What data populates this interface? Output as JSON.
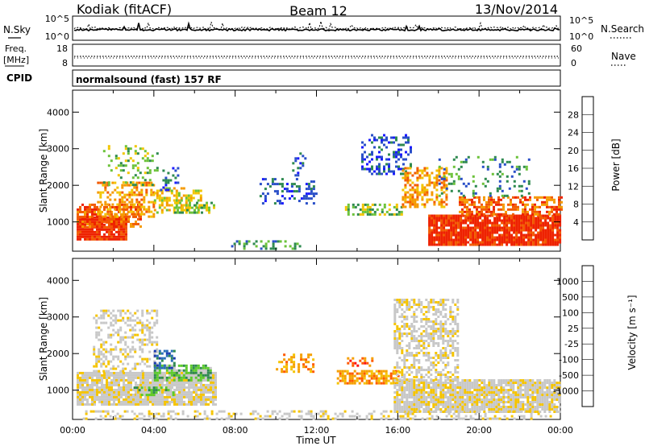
{
  "header": {
    "station": "Kodiak (fitACF)",
    "beam": "Beam 12",
    "date": "13/Nov/2014"
  },
  "strips": {
    "sky": {
      "left_label": "N.Sky",
      "right_label": "N.Search",
      "left_ticks": [
        "10^5",
        "10^0"
      ],
      "right_ticks": [
        "10^5",
        "10^0"
      ]
    },
    "freq": {
      "left_label_1": "Freq.",
      "left_label_2": "[MHz]",
      "right_label": "Nave",
      "left_ticks": [
        "18",
        "8"
      ],
      "right_ticks": [
        "60",
        "0"
      ]
    },
    "cpid": {
      "left_label": "CPID",
      "text": "normalsound (fast) 157 RF"
    }
  },
  "colors": {
    "power": [
      "#1a1aff",
      "#2a4fc8",
      "#2f8a50",
      "#6cc23a",
      "#f2c500",
      "#f59a00",
      "#f25a00",
      "#ee2200"
    ],
    "velocity": [
      "#ff1111",
      "#ff5a00",
      "#f5a000",
      "#f5c400",
      "#c8c8c8",
      "#c8c8c8",
      "#5ccb2b",
      "#2f8a50",
      "#2a6fb8",
      "#1a3ab0"
    ]
  },
  "chart_data": [
    {
      "type": "heatmap",
      "name": "power",
      "ylabel": "Slant Range [km]",
      "xlim": [
        0,
        24
      ],
      "ylim": [
        200,
        4600
      ],
      "yticks": [
        "1000",
        "2000",
        "3000",
        "4000"
      ],
      "colorbar": {
        "label": "Power [dB]",
        "ticks": [
          "28",
          "24",
          "20",
          "16",
          "12",
          "8",
          "4"
        ]
      },
      "regions": [
        {
          "t0": 0.2,
          "t1": 2.6,
          "r0": 500,
          "r1": 1150,
          "level": 7,
          "density": 0.9
        },
        {
          "t0": 0.2,
          "t1": 3.4,
          "r0": 850,
          "r1": 1500,
          "level": 6,
          "density": 0.6
        },
        {
          "t0": 1.2,
          "t1": 4.0,
          "r0": 1150,
          "r1": 2100,
          "level": 5,
          "density": 0.45
        },
        {
          "t0": 1.5,
          "t1": 4.2,
          "r0": 2000,
          "r1": 3100,
          "level": 3,
          "density": 0.22
        },
        {
          "t0": 4.0,
          "t1": 6.3,
          "r0": 1250,
          "r1": 1950,
          "level": 4,
          "density": 0.45
        },
        {
          "t0": 5.0,
          "t1": 7.0,
          "r0": 1250,
          "r1": 1550,
          "level": 3,
          "density": 0.5
        },
        {
          "t0": 4.3,
          "t1": 5.2,
          "r0": 1900,
          "r1": 2500,
          "level": 1,
          "density": 0.3
        },
        {
          "t0": 7.8,
          "t1": 11.2,
          "r0": 300,
          "r1": 500,
          "level": 2,
          "density": 0.35
        },
        {
          "t0": 9.2,
          "t1": 12.0,
          "r0": 1500,
          "r1": 2200,
          "level": 1,
          "density": 0.3
        },
        {
          "t0": 10.8,
          "t1": 11.6,
          "r0": 2300,
          "r1": 2900,
          "level": 1,
          "density": 0.3
        },
        {
          "t0": 13.4,
          "t1": 16.2,
          "r0": 1200,
          "r1": 1500,
          "level": 3,
          "density": 0.5
        },
        {
          "t0": 14.2,
          "t1": 16.6,
          "r0": 2300,
          "r1": 3400,
          "level": 1,
          "density": 0.35
        },
        {
          "t0": 16.2,
          "t1": 18.4,
          "r0": 1400,
          "r1": 2500,
          "level": 5,
          "density": 0.5
        },
        {
          "t0": 17.5,
          "t1": 24.0,
          "r0": 400,
          "r1": 1200,
          "level": 7,
          "density": 0.92
        },
        {
          "t0": 19.0,
          "t1": 24.0,
          "r0": 1200,
          "r1": 1700,
          "level": 6,
          "density": 0.6
        },
        {
          "t0": 18.0,
          "t1": 22.5,
          "r0": 1700,
          "r1": 2800,
          "level": 2,
          "density": 0.15
        }
      ]
    },
    {
      "type": "heatmap",
      "name": "velocity",
      "ylabel": "Slant Range [km]",
      "xlabel": "Time UT",
      "xlim": [
        0,
        24
      ],
      "ylim": [
        200,
        4600
      ],
      "xticks": [
        "00:00",
        "04:00",
        "08:00",
        "12:00",
        "16:00",
        "20:00",
        "00:00"
      ],
      "yticks": [
        "1000",
        "2000",
        "3000",
        "4000"
      ],
      "colorbar": {
        "label": "Velocity [m s⁻¹]",
        "ticks": [
          "1000",
          "500",
          "100",
          "25",
          "-25",
          "-100",
          "-500",
          "-1000"
        ]
      },
      "regions": [
        {
          "t0": 0.2,
          "t1": 7.0,
          "r0": 600,
          "r1": 1500,
          "level": 4,
          "density": 0.9
        },
        {
          "t0": 1.0,
          "t1": 4.2,
          "r0": 1500,
          "r1": 3200,
          "level": 4,
          "density": 0.4
        },
        {
          "t0": 4.0,
          "t1": 6.8,
          "r0": 1250,
          "r1": 1700,
          "level": 6,
          "density": 0.8
        },
        {
          "t0": 3.0,
          "t1": 5.0,
          "r0": 900,
          "r1": 1100,
          "level": 6,
          "density": 0.5
        },
        {
          "t0": 4.0,
          "t1": 5.0,
          "r0": 1600,
          "r1": 2100,
          "level": 8,
          "density": 0.5
        },
        {
          "t0": 10.0,
          "t1": 11.8,
          "r0": 1500,
          "r1": 2000,
          "level": 2,
          "density": 0.35
        },
        {
          "t0": 13.0,
          "t1": 16.0,
          "r0": 1200,
          "r1": 1550,
          "level": 2,
          "density": 0.7
        },
        {
          "t0": 13.5,
          "t1": 14.8,
          "r0": 1700,
          "r1": 1900,
          "level": 1,
          "density": 0.4
        },
        {
          "t0": 15.8,
          "t1": 24.0,
          "r0": 400,
          "r1": 1300,
          "level": 4,
          "density": 0.88
        },
        {
          "t0": 15.8,
          "t1": 19.0,
          "r0": 1300,
          "r1": 3500,
          "level": 4,
          "density": 0.55
        },
        {
          "t0": 0.5,
          "t1": 23.5,
          "r0": 250,
          "r1": 450,
          "level": 4,
          "density": 0.3
        }
      ]
    }
  ]
}
